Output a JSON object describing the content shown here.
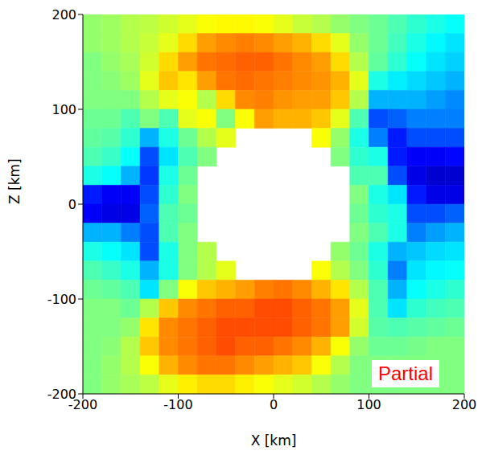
{
  "chart_data": {
    "type": "heatmap",
    "x_label": "X [km]",
    "y_label": "Z [km]",
    "xlim": [
      -200,
      200
    ],
    "ylim": [
      -200,
      200
    ],
    "xticks": [
      -200,
      -100,
      0,
      100,
      200
    ],
    "yticks": [
      -200,
      -100,
      0,
      100,
      200
    ],
    "x": [
      -190,
      -170,
      -150,
      -130,
      -110,
      -90,
      -70,
      -50,
      -30,
      -10,
      10,
      30,
      50,
      70,
      90,
      110,
      130,
      150,
      170,
      190
    ],
    "y": [
      190,
      170,
      150,
      130,
      110,
      90,
      70,
      50,
      30,
      10,
      -10,
      -30,
      -50,
      -70,
      -90,
      -110,
      -130,
      -150,
      -170,
      -190
    ],
    "zlim": [
      0,
      1
    ],
    "cells": [
      [
        0.52,
        0.53,
        0.55,
        0.56,
        0.58,
        0.6,
        0.62,
        0.63,
        0.63,
        0.62,
        0.6,
        0.57,
        0.55,
        0.52,
        0.5,
        0.48,
        0.45,
        0.42,
        0.4,
        0.38
      ],
      [
        0.52,
        0.53,
        0.55,
        0.57,
        0.6,
        0.66,
        0.72,
        0.74,
        0.75,
        0.74,
        0.72,
        0.7,
        0.66,
        0.6,
        0.52,
        0.48,
        0.44,
        0.4,
        0.37,
        0.35
      ],
      [
        0.5,
        0.52,
        0.54,
        0.58,
        0.66,
        0.72,
        0.76,
        0.77,
        0.78,
        0.78,
        0.76,
        0.74,
        0.72,
        0.66,
        0.55,
        0.47,
        0.42,
        0.38,
        0.35,
        0.33
      ],
      [
        0.5,
        0.51,
        0.53,
        0.6,
        0.68,
        0.65,
        0.72,
        0.76,
        0.77,
        0.76,
        0.75,
        0.74,
        0.73,
        0.7,
        0.6,
        0.4,
        0.36,
        0.34,
        0.32,
        0.3
      ],
      [
        0.5,
        0.5,
        0.5,
        0.55,
        0.6,
        0.62,
        0.55,
        0.66,
        0.74,
        0.75,
        0.73,
        0.72,
        0.72,
        0.68,
        0.55,
        0.3,
        0.3,
        0.3,
        0.28,
        0.26
      ],
      [
        0.48,
        0.48,
        0.45,
        0.5,
        0.45,
        0.6,
        0.62,
        0.5,
        0.62,
        0.72,
        0.7,
        0.7,
        0.68,
        0.6,
        0.45,
        0.2,
        0.22,
        0.25,
        0.25,
        0.25
      ],
      [
        0.47,
        0.46,
        0.42,
        0.3,
        0.4,
        0.48,
        0.55,
        0.6,
        null,
        null,
        null,
        null,
        0.62,
        0.52,
        0.4,
        0.25,
        0.15,
        0.2,
        0.2,
        0.2
      ],
      [
        0.45,
        0.43,
        0.38,
        0.2,
        0.35,
        0.45,
        0.5,
        null,
        null,
        null,
        null,
        null,
        null,
        0.5,
        0.42,
        0.4,
        0.15,
        0.12,
        0.12,
        0.13
      ],
      [
        0.4,
        0.38,
        0.3,
        0.18,
        0.4,
        0.48,
        null,
        null,
        null,
        null,
        null,
        null,
        null,
        null,
        0.45,
        0.45,
        0.2,
        0.1,
        0.08,
        0.08
      ],
      [
        0.15,
        0.12,
        0.12,
        0.2,
        0.42,
        0.5,
        null,
        null,
        null,
        null,
        null,
        null,
        null,
        null,
        0.5,
        0.4,
        0.35,
        0.15,
        0.1,
        0.1
      ],
      [
        0.12,
        0.1,
        0.1,
        0.22,
        0.45,
        0.48,
        null,
        null,
        null,
        null,
        null,
        null,
        null,
        null,
        0.48,
        0.42,
        0.4,
        0.2,
        0.2,
        0.22
      ],
      [
        0.3,
        0.3,
        0.25,
        0.2,
        0.45,
        0.5,
        null,
        null,
        null,
        null,
        null,
        null,
        null,
        null,
        0.5,
        0.45,
        0.4,
        0.25,
        0.28,
        0.3
      ],
      [
        0.4,
        0.38,
        0.35,
        0.2,
        0.4,
        0.5,
        0.55,
        null,
        null,
        null,
        null,
        null,
        null,
        0.52,
        0.48,
        0.4,
        0.3,
        0.32,
        0.34,
        0.35
      ],
      [
        0.45,
        0.43,
        0.4,
        0.3,
        0.4,
        0.5,
        0.55,
        0.6,
        null,
        null,
        null,
        null,
        0.62,
        0.55,
        0.5,
        0.42,
        0.25,
        0.35,
        0.37,
        0.38
      ],
      [
        0.48,
        0.47,
        0.45,
        0.35,
        0.5,
        0.62,
        0.68,
        0.7,
        0.72,
        0.75,
        0.76,
        0.74,
        0.7,
        0.65,
        0.55,
        0.45,
        0.3,
        0.38,
        0.4,
        0.42
      ],
      [
        0.5,
        0.5,
        0.48,
        0.55,
        0.68,
        0.74,
        0.76,
        0.78,
        0.78,
        0.8,
        0.8,
        0.78,
        0.76,
        0.72,
        0.6,
        0.45,
        0.35,
        0.42,
        0.44,
        0.45
      ],
      [
        0.5,
        0.5,
        0.52,
        0.65,
        0.74,
        0.76,
        0.78,
        0.8,
        0.8,
        0.8,
        0.8,
        0.78,
        0.76,
        0.72,
        0.58,
        0.46,
        0.45,
        0.46,
        0.47,
        0.48
      ],
      [
        0.5,
        0.51,
        0.55,
        0.68,
        0.74,
        0.76,
        0.78,
        0.8,
        0.78,
        0.78,
        0.76,
        0.74,
        0.7,
        0.62,
        0.52,
        0.48,
        0.48,
        0.49,
        0.5,
        0.5
      ],
      [
        0.5,
        0.52,
        0.55,
        0.62,
        0.7,
        0.74,
        0.76,
        0.76,
        0.74,
        0.72,
        0.7,
        0.68,
        0.62,
        0.55,
        0.5,
        0.5,
        0.5,
        0.5,
        0.5,
        0.5
      ],
      [
        0.5,
        0.52,
        0.54,
        0.56,
        0.6,
        0.64,
        0.66,
        0.66,
        0.64,
        0.62,
        0.6,
        0.58,
        0.55,
        0.52,
        0.5,
        0.5,
        0.5,
        0.5,
        0.5,
        0.5
      ]
    ],
    "annotations": [
      "Partial"
    ]
  }
}
